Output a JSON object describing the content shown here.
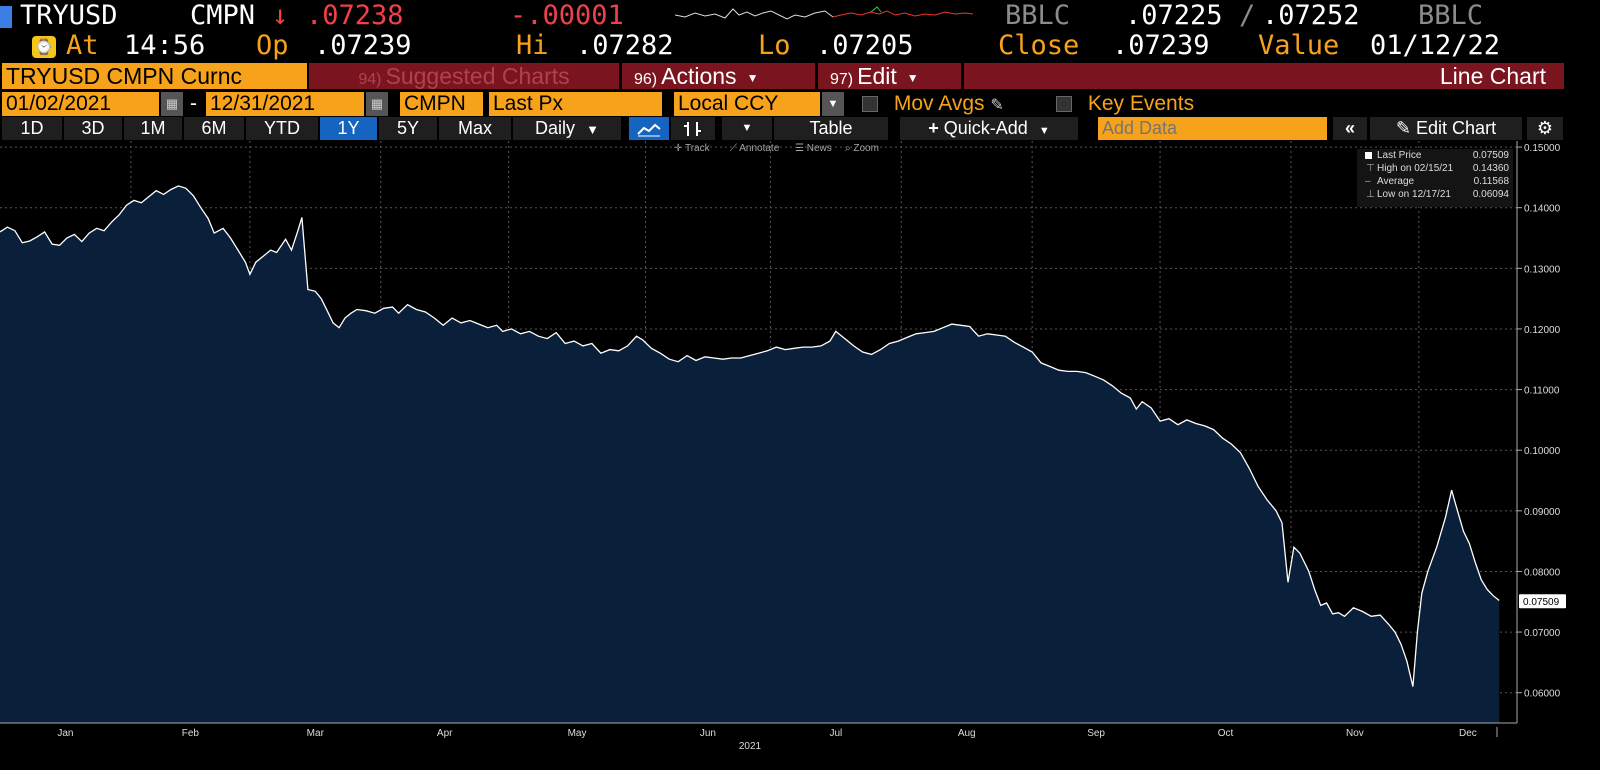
{
  "header": {
    "ticker": "TRYUSD",
    "source": "CMPN",
    "arrow": "↓",
    "last": ".07238",
    "change": "-.00001",
    "bid_src": "BBLC",
    "bid": ".07225",
    "slash": "/",
    "ask": ".07252",
    "ask_src": "BBLC",
    "at_label": "At",
    "time": "14:56",
    "op_label": "Op",
    "open": ".07239",
    "hi_label": "Hi",
    "high": ".07282",
    "lo_label": "Lo",
    "low": ".07205",
    "close_label": "Close",
    "close": ".07239",
    "value_label": "Value",
    "value_date": "01/12/22"
  },
  "menu": {
    "security": "TRYUSD CMPN Curnc",
    "suggested_num": "94)",
    "suggested": "Suggested Charts",
    "actions_num": "96)",
    "actions": "Actions",
    "edit_num": "97)",
    "edit": "Edit",
    "chart_type": "Line Chart"
  },
  "settings": {
    "start_date": "01/02/2021",
    "dash": "-",
    "end_date": "12/31/2021",
    "source": "CMPN",
    "field": "Last Px",
    "currency": "Local CCY",
    "mov_avgs": "Mov Avgs",
    "key_events": "Key Events"
  },
  "toolbar": {
    "ranges": [
      "1D",
      "3D",
      "1M",
      "6M",
      "YTD",
      "1Y",
      "5Y",
      "Max"
    ],
    "selected_range": "1Y",
    "period": "Daily",
    "table": "Table",
    "quick_add": "Quick-Add",
    "add_data_placeholder": "Add Data",
    "edit_chart": "Edit Chart",
    "hints": [
      "Track",
      "Annotate",
      "News",
      "Zoom"
    ]
  },
  "legend": {
    "items": [
      {
        "label": "Last Price",
        "value": "0.07509"
      },
      {
        "label": "High on 02/15/21",
        "value": "0.14360"
      },
      {
        "label": "Average",
        "value": "0.11568"
      },
      {
        "label": "Low on 12/17/21",
        "value": "0.06094"
      }
    ]
  },
  "colors": {
    "amber": "#f7a21b",
    "red": "#f0404a",
    "area_fill": "#0a1f3a",
    "line": "#ffffff",
    "selected_tab": "#1565c0"
  },
  "chart_data": {
    "type": "area",
    "ylim": [
      0.055,
      0.151
    ],
    "yticks": [
      "0.06000",
      "0.07000",
      "0.08000",
      "0.09000",
      "0.10000",
      "0.11000",
      "0.12000",
      "0.13000",
      "0.14000",
      "0.15000"
    ],
    "xtick_labels": [
      "Jan",
      "Feb",
      "Mar",
      "Apr",
      "May",
      "Jun",
      "Jul",
      "Aug",
      "Sep",
      "Oct",
      "Nov",
      "Dec"
    ],
    "year_label": "2021",
    "last_price_label": "0.07509",
    "series": [
      {
        "values": [
          [
            0.0,
            0.136
          ],
          [
            0.25,
            0.1368
          ],
          [
            0.5,
            0.1362
          ],
          [
            0.75,
            0.1342
          ],
          [
            1.0,
            0.1345
          ],
          [
            1.25,
            0.1352
          ],
          [
            1.5,
            0.136
          ],
          [
            1.75,
            0.134
          ],
          [
            2.0,
            0.1338
          ],
          [
            2.25,
            0.135
          ],
          [
            2.5,
            0.1356
          ],
          [
            2.75,
            0.1344
          ],
          [
            3.0,
            0.1358
          ],
          [
            3.25,
            0.1366
          ],
          [
            3.5,
            0.1362
          ],
          [
            3.75,
            0.1376
          ],
          [
            4.0,
            0.1388
          ],
          [
            4.25,
            0.1404
          ],
          [
            4.5,
            0.1412
          ],
          [
            4.75,
            0.1408
          ],
          [
            5.0,
            0.1418
          ],
          [
            5.25,
            0.1428
          ],
          [
            5.5,
            0.1422
          ],
          [
            5.75,
            0.143
          ],
          [
            6.0,
            0.1436
          ],
          [
            6.25,
            0.1432
          ],
          [
            6.5,
            0.142
          ],
          [
            6.75,
            0.14
          ],
          [
            7.0,
            0.1382
          ],
          [
            7.2,
            0.1358
          ],
          [
            7.5,
            0.1366
          ],
          [
            7.75,
            0.135
          ],
          [
            8.0,
            0.133
          ],
          [
            8.25,
            0.131
          ],
          [
            8.4,
            0.129
          ],
          [
            8.6,
            0.131
          ],
          [
            8.9,
            0.1322
          ],
          [
            9.1,
            0.133
          ],
          [
            9.3,
            0.1326
          ],
          [
            9.6,
            0.1348
          ],
          [
            9.8,
            0.133
          ],
          [
            10.0,
            0.136
          ],
          [
            10.15,
            0.1384
          ],
          [
            10.35,
            0.1265
          ],
          [
            10.6,
            0.1262
          ],
          [
            10.8,
            0.125
          ],
          [
            11.0,
            0.123
          ],
          [
            11.2,
            0.121
          ],
          [
            11.4,
            0.1202
          ],
          [
            11.6,
            0.1218
          ],
          [
            11.8,
            0.1226
          ],
          [
            12.0,
            0.1232
          ],
          [
            12.3,
            0.123
          ],
          [
            12.6,
            0.1226
          ],
          [
            12.9,
            0.1234
          ],
          [
            13.2,
            0.1236
          ],
          [
            13.4,
            0.1226
          ],
          [
            13.7,
            0.124
          ],
          [
            14.0,
            0.1232
          ],
          [
            14.3,
            0.1228
          ],
          [
            14.6,
            0.1218
          ],
          [
            14.9,
            0.1206
          ],
          [
            15.2,
            0.1218
          ],
          [
            15.5,
            0.121
          ],
          [
            15.8,
            0.1214
          ],
          [
            16.1,
            0.1208
          ],
          [
            16.4,
            0.1202
          ],
          [
            16.7,
            0.1206
          ],
          [
            16.9,
            0.1196
          ],
          [
            17.2,
            0.12
          ],
          [
            17.5,
            0.1192
          ],
          [
            17.8,
            0.1196
          ],
          [
            18.1,
            0.1188
          ],
          [
            18.4,
            0.1184
          ],
          [
            18.7,
            0.1194
          ],
          [
            19.0,
            0.1176
          ],
          [
            19.3,
            0.118
          ],
          [
            19.6,
            0.1172
          ],
          [
            19.9,
            0.1176
          ],
          [
            20.2,
            0.116
          ],
          [
            20.5,
            0.1166
          ],
          [
            20.8,
            0.1164
          ],
          [
            21.1,
            0.1172
          ],
          [
            21.4,
            0.1188
          ],
          [
            21.6,
            0.1182
          ],
          [
            21.9,
            0.1168
          ],
          [
            22.2,
            0.116
          ],
          [
            22.5,
            0.115
          ],
          [
            22.8,
            0.1146
          ],
          [
            23.1,
            0.1156
          ],
          [
            23.4,
            0.1148
          ],
          [
            23.7,
            0.1154
          ],
          [
            24.0,
            0.1152
          ],
          [
            24.3,
            0.115
          ],
          [
            24.6,
            0.1152
          ],
          [
            24.9,
            0.1152
          ],
          [
            25.2,
            0.1156
          ],
          [
            25.5,
            0.116
          ],
          [
            25.8,
            0.1164
          ],
          [
            26.1,
            0.117
          ],
          [
            26.4,
            0.1166
          ],
          [
            26.7,
            0.1168
          ],
          [
            27.0,
            0.117
          ],
          [
            27.3,
            0.117
          ],
          [
            27.6,
            0.1172
          ],
          [
            27.9,
            0.118
          ],
          [
            28.1,
            0.1196
          ],
          [
            28.4,
            0.1184
          ],
          [
            28.7,
            0.1172
          ],
          [
            29.0,
            0.1162
          ],
          [
            29.3,
            0.1158
          ],
          [
            29.6,
            0.1166
          ],
          [
            29.9,
            0.1176
          ],
          [
            30.2,
            0.118
          ],
          [
            30.5,
            0.1186
          ],
          [
            30.8,
            0.1192
          ],
          [
            31.1,
            0.1194
          ],
          [
            31.4,
            0.1196
          ],
          [
            31.7,
            0.1202
          ],
          [
            32.0,
            0.1208
          ],
          [
            32.3,
            0.1206
          ],
          [
            32.6,
            0.1204
          ],
          [
            32.9,
            0.1188
          ],
          [
            33.2,
            0.1192
          ],
          [
            33.5,
            0.119
          ],
          [
            33.8,
            0.1188
          ],
          [
            34.1,
            0.1178
          ],
          [
            34.4,
            0.117
          ],
          [
            34.7,
            0.1162
          ],
          [
            35.0,
            0.1144
          ],
          [
            35.3,
            0.1138
          ],
          [
            35.6,
            0.1132
          ],
          [
            35.9,
            0.113
          ],
          [
            36.2,
            0.113
          ],
          [
            36.5,
            0.1128
          ],
          [
            36.8,
            0.1122
          ],
          [
            37.1,
            0.1116
          ],
          [
            37.4,
            0.1106
          ],
          [
            37.7,
            0.1094
          ],
          [
            38.0,
            0.1086
          ],
          [
            38.2,
            0.1068
          ],
          [
            38.4,
            0.108
          ],
          [
            38.7,
            0.107
          ],
          [
            39.0,
            0.1048
          ],
          [
            39.3,
            0.1052
          ],
          [
            39.6,
            0.1042
          ],
          [
            39.9,
            0.105
          ],
          [
            40.2,
            0.1044
          ],
          [
            40.5,
            0.104
          ],
          [
            40.8,
            0.1034
          ],
          [
            41.1,
            0.102
          ],
          [
            41.4,
            0.101
          ],
          [
            41.7,
            0.0996
          ],
          [
            42.0,
            0.097
          ],
          [
            42.3,
            0.094
          ],
          [
            42.6,
            0.0918
          ],
          [
            42.9,
            0.09
          ],
          [
            43.1,
            0.088
          ],
          [
            43.3,
            0.0782
          ],
          [
            43.5,
            0.084
          ],
          [
            43.7,
            0.083
          ],
          [
            44.0,
            0.08
          ],
          [
            44.2,
            0.077
          ],
          [
            44.4,
            0.0744
          ],
          [
            44.6,
            0.0748
          ],
          [
            44.8,
            0.073
          ],
          [
            45.0,
            0.0732
          ],
          [
            45.2,
            0.0726
          ],
          [
            45.5,
            0.074
          ],
          [
            45.8,
            0.0734
          ],
          [
            46.1,
            0.0726
          ],
          [
            46.4,
            0.0728
          ],
          [
            46.7,
            0.0712
          ],
          [
            46.9,
            0.07
          ],
          [
            47.1,
            0.068
          ],
          [
            47.3,
            0.0652
          ],
          [
            47.5,
            0.061
          ],
          [
            47.65,
            0.07
          ],
          [
            47.8,
            0.0764
          ],
          [
            48.0,
            0.08
          ],
          [
            48.3,
            0.084
          ],
          [
            48.6,
            0.089
          ],
          [
            48.8,
            0.0934
          ],
          [
            49.0,
            0.09
          ],
          [
            49.2,
            0.0866
          ],
          [
            49.4,
            0.0846
          ],
          [
            49.6,
            0.0814
          ],
          [
            49.8,
            0.0786
          ],
          [
            50.0,
            0.077
          ],
          [
            50.2,
            0.076
          ],
          [
            50.4,
            0.0752
          ]
        ]
      }
    ]
  }
}
